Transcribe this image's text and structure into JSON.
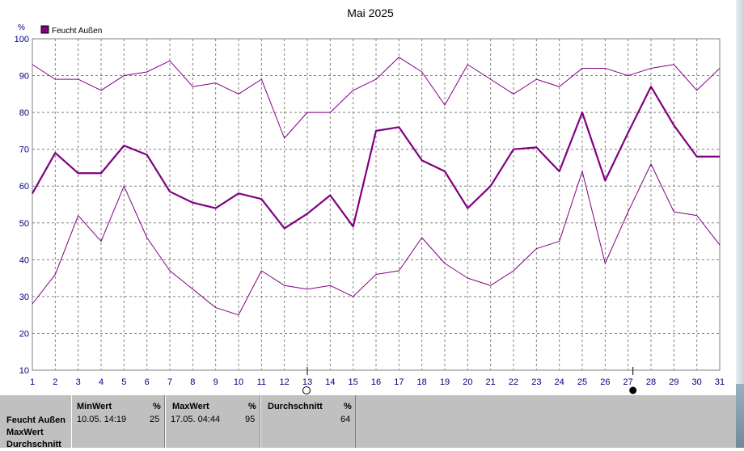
{
  "chart_data": {
    "type": "line",
    "title": "Mai 2025",
    "ylabel": "%",
    "ylim": [
      10,
      100
    ],
    "yticks": [
      10,
      20,
      30,
      40,
      50,
      60,
      70,
      80,
      90,
      100
    ],
    "x": [
      1,
      2,
      3,
      4,
      5,
      6,
      7,
      8,
      9,
      10,
      11,
      12,
      13,
      14,
      15,
      16,
      17,
      18,
      19,
      20,
      21,
      22,
      23,
      24,
      25,
      26,
      27,
      28,
      29,
      30,
      31
    ],
    "legend": {
      "label": "Feucht Außen",
      "color": "#800080"
    },
    "grid": true,
    "series": [
      {
        "name": "Feucht Außen",
        "kind": "max",
        "values": [
          93,
          89,
          89,
          86,
          90,
          91,
          94,
          87,
          88,
          85,
          89,
          73,
          80,
          80,
          86,
          89,
          95,
          91,
          82,
          93,
          89,
          85,
          89,
          87,
          92,
          92,
          90,
          92,
          93,
          86,
          92
        ]
      },
      {
        "name": "Feucht Außen",
        "kind": "avg",
        "values": [
          58,
          69,
          63.5,
          63.5,
          71,
          68.5,
          58.5,
          55.5,
          54,
          58,
          56.5,
          48.5,
          52.5,
          57.5,
          49,
          75,
          76,
          67,
          64,
          54,
          60,
          70,
          70.5,
          64,
          80,
          61.5,
          74.5,
          87,
          76.5,
          68,
          68
        ]
      },
      {
        "name": "Feucht Außen",
        "kind": "min",
        "values": [
          28,
          36,
          52,
          45,
          60,
          46,
          37,
          32,
          27,
          25,
          37,
          33,
          32,
          33,
          30,
          36,
          37,
          46,
          39,
          35,
          33,
          37,
          43,
          45,
          64,
          39,
          53,
          66,
          53,
          52,
          44
        ]
      }
    ],
    "markers": {
      "open_circle_day": 13,
      "filled_circle_day": 27
    }
  },
  "stats": {
    "row_labels": [
      "Feucht Außen",
      "MaxWert",
      "Durchschnitt"
    ],
    "min": {
      "header": "MinWert",
      "unit": "%",
      "timestamp": "10.05.  14:19",
      "value": "25"
    },
    "max": {
      "header": "MaxWert",
      "unit": "%",
      "timestamp": "17.05.  04:44",
      "value": "95"
    },
    "avg": {
      "header": "Durchschnitt",
      "unit": "%",
      "value": "64"
    }
  }
}
